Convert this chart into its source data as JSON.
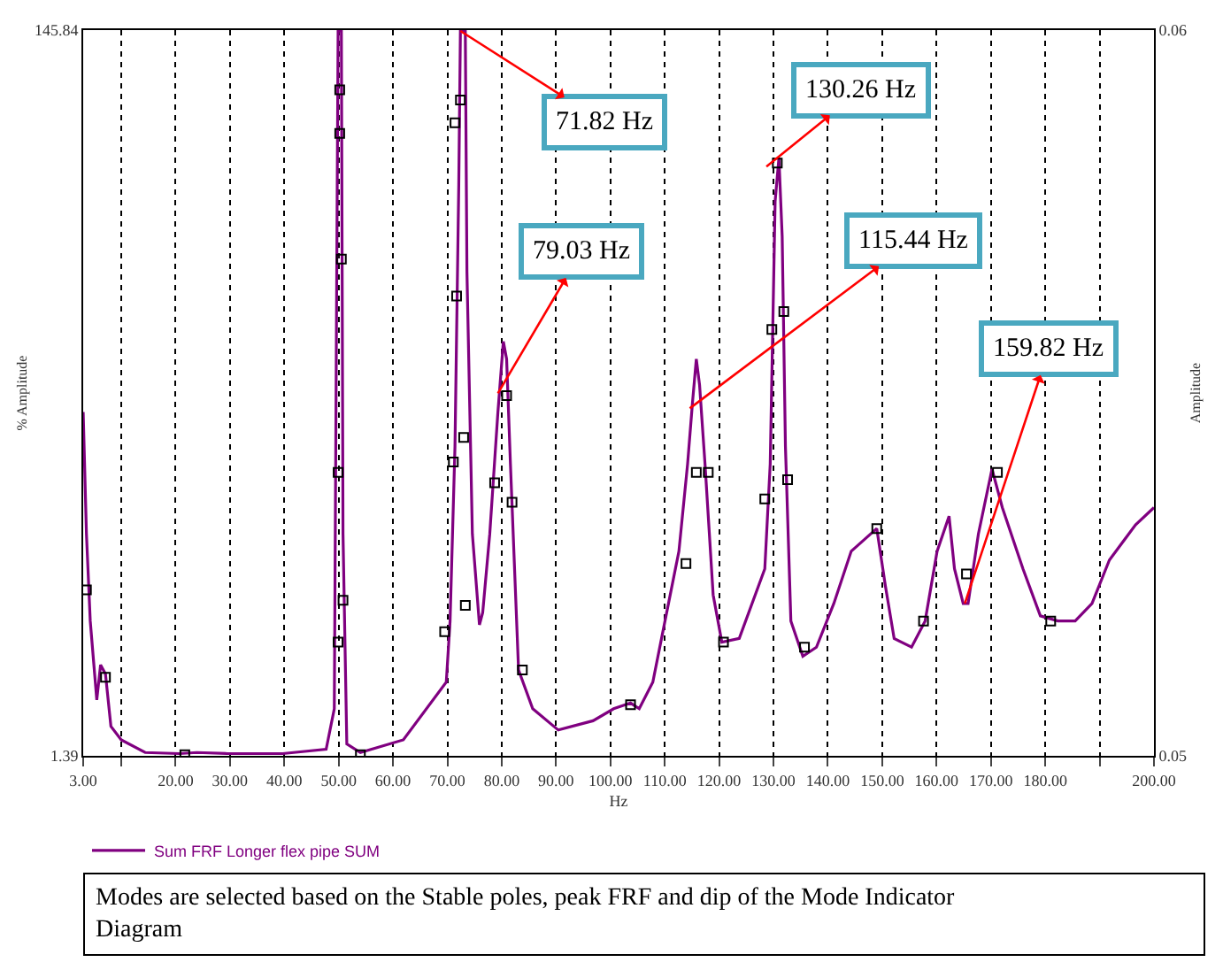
{
  "chart_data": {
    "type": "line",
    "xlabel": "Hz",
    "ylabel": "% Amplitude",
    "y2label": "Amplitude",
    "log": "y",
    "grid": "x",
    "legend": "bottom",
    "line_style": "solid",
    "xlim": [
      3,
      200
    ],
    "xticks": [
      {
        "value": 3,
        "label": "3.00"
      },
      {
        "value": 10,
        "label": null
      },
      {
        "value": 20,
        "label": "20.00"
      },
      {
        "value": 30,
        "label": "30.00"
      },
      {
        "value": 40,
        "label": "40.00"
      },
      {
        "value": 50,
        "label": "50.00"
      },
      {
        "value": 60,
        "label": "60.00"
      },
      {
        "value": 70,
        "label": "70.00"
      },
      {
        "value": 80,
        "label": "80.00"
      },
      {
        "value": 90,
        "label": "90.00"
      },
      {
        "value": 100,
        "label": "100.00"
      },
      {
        "value": 110,
        "label": "110.00"
      },
      {
        "value": 120,
        "label": "120.00"
      },
      {
        "value": 130,
        "label": "130.00"
      },
      {
        "value": 140,
        "label": "140.00"
      },
      {
        "value": 150,
        "label": "150.00"
      },
      {
        "value": 160,
        "label": "160.00"
      },
      {
        "value": 170,
        "label": "170.00"
      },
      {
        "value": 180,
        "label": "180.00"
      },
      {
        "value": 190,
        "label": null
      },
      {
        "value": 200,
        "label": "200.00"
      }
    ],
    "ylim": [
      1.39,
      145.84
    ],
    "yticks": [
      1.39,
      145.84
    ],
    "y2lim": [
      0.05,
      0.06
    ],
    "y2ticks": [
      0.05,
      0.06
    ],
    "series": [
      {
        "name": "Sum FRF Longer flex pipe SUM",
        "color": "#800080",
        "marker": "none",
        "x": [
          3.0,
          3.6,
          4.3,
          5.5,
          6.2,
          7.1,
          8.1,
          10.0,
          14.4,
          20.7,
          23.9,
          29.6,
          39.7,
          47.7,
          49.2,
          49.9,
          50.5,
          50.8,
          51.5,
          54.0,
          61.9,
          69.8,
          70.5,
          71.4,
          72.1,
          72.4,
          73.3,
          73.6,
          74.6,
          75.9,
          76.5,
          77.8,
          79.3,
          80.3,
          80.9,
          81.6,
          83.1,
          85.7,
          90.4,
          96.8,
          100.6,
          103.7,
          105.3,
          107.8,
          109.4,
          112.6,
          114.2,
          115.1,
          115.8,
          116.4,
          117.4,
          118.9,
          120.5,
          123.7,
          128.4,
          129.4,
          130.3,
          131.0,
          131.6,
          132.2,
          133.2,
          135.4,
          137.9,
          141.1,
          144.3,
          149.0,
          150.6,
          152.2,
          155.4,
          157.9,
          160.1,
          162.3,
          163.3,
          164.9,
          165.8,
          167.7,
          170.2,
          172.1,
          175.9,
          179.1,
          182.3,
          185.5,
          188.6,
          191.8,
          196.6,
          200.0
        ],
        "values": [
          12.6,
          5.77,
          3.3,
          1.99,
          2.49,
          2.35,
          1.68,
          1.54,
          1.42,
          1.41,
          1.42,
          1.41,
          1.41,
          1.45,
          1.88,
          145,
          145,
          5.77,
          1.5,
          1.42,
          1.54,
          2.23,
          3.3,
          10.1,
          54.3,
          145,
          145,
          31.0,
          5.77,
          3.22,
          3.48,
          5.77,
          12.6,
          19.8,
          17.7,
          9.04,
          2.41,
          1.88,
          1.64,
          1.74,
          1.88,
          1.95,
          1.88,
          2.23,
          2.95,
          5.16,
          9.04,
          13.4,
          17.7,
          15.0,
          9.04,
          3.9,
          2.88,
          2.95,
          4.61,
          9.04,
          48.6,
          64.3,
          38.8,
          10.1,
          3.3,
          2.63,
          2.79,
          3.69,
          5.16,
          5.97,
          4.12,
          2.95,
          2.79,
          3.3,
          5.16,
          6.46,
          4.61,
          3.69,
          3.69,
          5.77,
          8.74,
          6.83,
          4.61,
          3.41,
          3.3,
          3.3,
          3.69,
          4.88,
          6.11,
          6.83
        ]
      },
      {
        "color": "#000000",
        "type": "scatter",
        "marker": "square",
        "x": [
          3.6,
          7.1,
          21.7,
          54.0,
          50.2,
          50.2,
          50.5,
          49.9,
          50.8,
          49.9,
          72.4,
          71.4,
          71.7,
          73.0,
          71.1,
          69.5,
          73.3,
          80.9,
          78.7,
          81.9,
          83.8,
          103.7,
          113.9,
          115.8,
          118.0,
          120.8,
          128.4,
          129.7,
          131.9,
          130.7,
          132.6,
          135.7,
          149.0,
          157.6,
          165.5,
          171.2,
          181.0
        ],
        "values": [
          4.03,
          2.3,
          1.4,
          1.4,
          99.5,
          75.2,
          33.6,
          8.55,
          3.77,
          2.88,
          93.1,
          80.5,
          26.5,
          10.7,
          9.14,
          3.08,
          3.65,
          14.0,
          8.0,
          7.06,
          2.41,
          1.93,
          4.77,
          8.55,
          8.55,
          2.88,
          7.22,
          21.4,
          24.0,
          62.2,
          8.17,
          2.79,
          5.97,
          3.3,
          4.46,
          8.55,
          3.3
        ]
      }
    ],
    "annotations": [
      {
        "text": "71.82 Hz",
        "x": 72.4,
        "y": 145
      },
      {
        "text": "79.03 Hz",
        "x": 79.3,
        "y": 14.2
      },
      {
        "text": "115.44 Hz",
        "x": 114.6,
        "y": 12.9
      },
      {
        "text": "130.26 Hz",
        "x": 128.7,
        "y": 60.8
      },
      {
        "text": "159.82 Hz",
        "x": 165.2,
        "y": 3.69
      },
      "Modes are selected based on the Stable poles, peak FRF and dip of the Mode Indicator Diagram"
    ]
  }
}
